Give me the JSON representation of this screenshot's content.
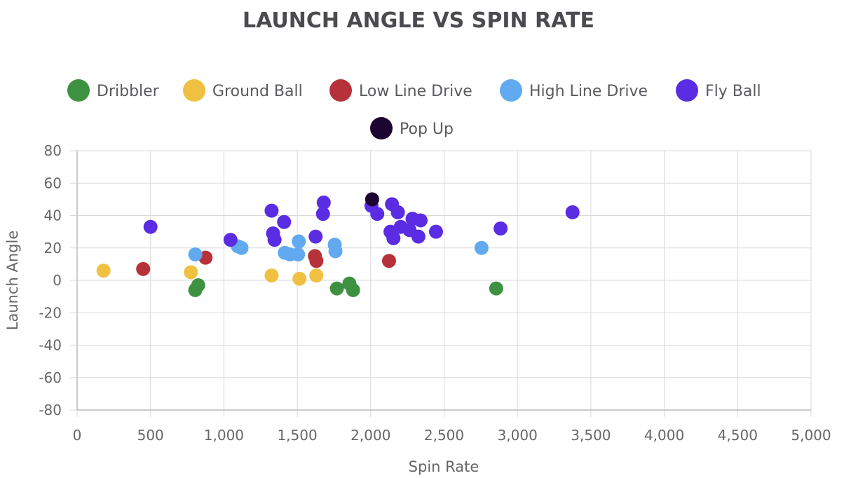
{
  "chart_data": {
    "type": "scatter",
    "title": "LAUNCH ANGLE VS SPIN RATE",
    "xlabel": "Spin Rate",
    "ylabel": "Launch Angle",
    "xlim": [
      0,
      5000
    ],
    "ylim": [
      -80,
      80
    ],
    "x_ticks": [
      0,
      500,
      1000,
      1500,
      2000,
      2500,
      3000,
      3500,
      4000,
      4500,
      5000
    ],
    "x_tick_labels": [
      "0",
      "500",
      "1,000",
      "1,500",
      "2,000",
      "2,500",
      "3,000",
      "3,500",
      "4,000",
      "4,500",
      "5,000"
    ],
    "y_ticks": [
      80,
      60,
      40,
      20,
      0,
      -20,
      -40,
      -60,
      -80
    ],
    "y_tick_labels": [
      "80",
      "60",
      "40",
      "20",
      "0",
      "-20",
      "-40",
      "-60",
      "-80"
    ],
    "grid": true,
    "legend_position": "top",
    "series": [
      {
        "name": "Dribbler",
        "color": "#3f9142",
        "points": [
          [
            805,
            -6
          ],
          [
            825,
            -3
          ],
          [
            1770,
            -5
          ],
          [
            1855,
            -2
          ],
          [
            1880,
            -6
          ],
          [
            2855,
            -5
          ]
        ]
      },
      {
        "name": "Ground Ball",
        "color": "#f0c040",
        "points": [
          [
            180,
            6
          ],
          [
            775,
            5
          ],
          [
            1325,
            3
          ],
          [
            1515,
            1
          ],
          [
            1630,
            3
          ]
        ]
      },
      {
        "name": "Low Line Drive",
        "color": "#b7313a",
        "points": [
          [
            450,
            7
          ],
          [
            875,
            14
          ],
          [
            1620,
            15
          ],
          [
            1630,
            12
          ],
          [
            2125,
            12
          ]
        ]
      },
      {
        "name": "High Line Drive",
        "color": "#61aaf0",
        "points": [
          [
            805,
            16
          ],
          [
            1095,
            21
          ],
          [
            1120,
            20
          ],
          [
            1415,
            17
          ],
          [
            1450,
            16
          ],
          [
            1505,
            16
          ],
          [
            1510,
            24
          ],
          [
            1755,
            22
          ],
          [
            1760,
            18
          ],
          [
            2755,
            20
          ]
        ]
      },
      {
        "name": "Fly Ball",
        "color": "#5a2ce3",
        "points": [
          [
            500,
            33
          ],
          [
            1045,
            25
          ],
          [
            1325,
            43
          ],
          [
            1335,
            29
          ],
          [
            1345,
            25
          ],
          [
            1410,
            36
          ],
          [
            1625,
            27
          ],
          [
            1675,
            41
          ],
          [
            1680,
            48
          ],
          [
            2005,
            46
          ],
          [
            2045,
            41
          ],
          [
            2135,
            30
          ],
          [
            2145,
            47
          ],
          [
            2155,
            26
          ],
          [
            2185,
            42
          ],
          [
            2205,
            33
          ],
          [
            2265,
            31
          ],
          [
            2285,
            38
          ],
          [
            2325,
            27
          ],
          [
            2340,
            37
          ],
          [
            2445,
            30
          ],
          [
            2885,
            32
          ],
          [
            3375,
            42
          ]
        ]
      },
      {
        "name": "Pop Up",
        "color": "#1c0530",
        "points": [
          [
            2010,
            50
          ]
        ]
      }
    ]
  }
}
